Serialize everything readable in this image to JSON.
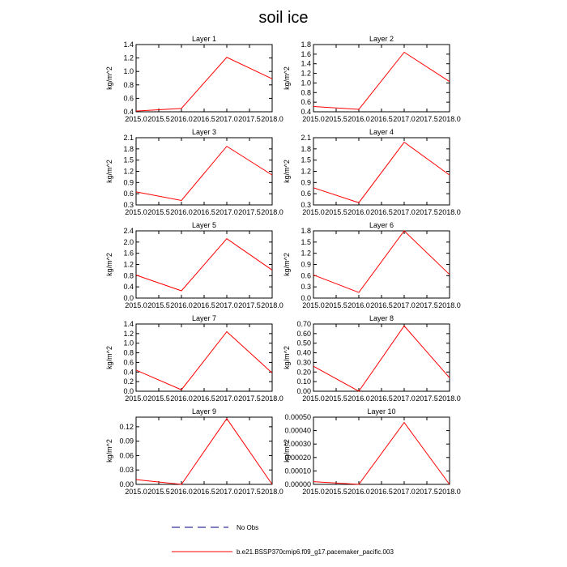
{
  "title": "soil ice",
  "colors": {
    "model_line": "#ff0000",
    "obs_line": "#000080"
  },
  "legend": {
    "obs_label": "No Obs",
    "model_label": "b.e21.BSSP370cmip6.f09_g17.pacemaker_pacific.003"
  },
  "chart_data": [
    {
      "type": "line",
      "title": "Layer 1",
      "ylabel": "kg/m^2",
      "x": [
        2015.0,
        2016.0,
        2017.0,
        2018.0
      ],
      "series": [
        {
          "values": [
            0.41,
            0.45,
            1.21,
            0.89
          ]
        }
      ],
      "xlim": [
        2015.0,
        2018.0
      ],
      "ylim": [
        0.4,
        1.4
      ],
      "xticks": [
        "2015.0",
        "2015.5",
        "2016.0",
        "2016.5",
        "2017.0",
        "2017.5",
        "2018.0"
      ],
      "yticks": [
        "0.4",
        "0.6",
        "0.8",
        "1.0",
        "1.2",
        "1.4"
      ]
    },
    {
      "type": "line",
      "title": "Layer 2",
      "ylabel": "kg/m^2",
      "x": [
        2015.0,
        2016.0,
        2017.0,
        2018.0
      ],
      "series": [
        {
          "values": [
            0.51,
            0.45,
            1.64,
            1.03
          ]
        }
      ],
      "xlim": [
        2015.0,
        2018.0
      ],
      "ylim": [
        0.4,
        1.8
      ],
      "xticks": [
        "2015.0",
        "2015.5",
        "2016.0",
        "2016.5",
        "2017.0",
        "2017.5",
        "2018.0"
      ],
      "yticks": [
        "0.4",
        "0.6",
        "0.8",
        "1.0",
        "1.2",
        "1.4",
        "1.6",
        "1.8"
      ]
    },
    {
      "type": "line",
      "title": "Layer 3",
      "ylabel": "kg/m^2",
      "x": [
        2015.0,
        2016.0,
        2017.0,
        2018.0
      ],
      "series": [
        {
          "values": [
            0.65,
            0.42,
            1.87,
            1.1
          ]
        }
      ],
      "xlim": [
        2015.0,
        2018.0
      ],
      "ylim": [
        0.3,
        2.1
      ],
      "xticks": [
        "2015.0",
        "2015.5",
        "2016.0",
        "2016.5",
        "2017.0",
        "2017.5",
        "2018.0"
      ],
      "yticks": [
        "0.3",
        "0.6",
        "0.9",
        "1.2",
        "1.5",
        "1.8",
        "2.1"
      ]
    },
    {
      "type": "line",
      "title": "Layer 4",
      "ylabel": "kg/m^2",
      "x": [
        2015.0,
        2016.0,
        2017.0,
        2018.0
      ],
      "series": [
        {
          "values": [
            0.76,
            0.36,
            1.98,
            1.1
          ]
        }
      ],
      "xlim": [
        2015.0,
        2018.0
      ],
      "ylim": [
        0.3,
        2.1
      ],
      "xticks": [
        "2015.0",
        "2015.5",
        "2016.0",
        "2016.5",
        "2017.0",
        "2017.5",
        "2018.0"
      ],
      "yticks": [
        "0.3",
        "0.6",
        "0.9",
        "1.2",
        "1.5",
        "1.8",
        "2.1"
      ]
    },
    {
      "type": "line",
      "title": "Layer 5",
      "ylabel": "kg/m^2",
      "x": [
        2015.0,
        2016.0,
        2017.0,
        2018.0
      ],
      "series": [
        {
          "values": [
            0.82,
            0.26,
            2.12,
            1.0
          ]
        }
      ],
      "xlim": [
        2015.0,
        2018.0
      ],
      "ylim": [
        0.0,
        2.4
      ],
      "xticks": [
        "2015.0",
        "2015.5",
        "2016.0",
        "2016.5",
        "2017.0",
        "2017.5",
        "2018.0"
      ],
      "yticks": [
        "0.0",
        "0.4",
        "0.8",
        "1.2",
        "1.6",
        "2.0",
        "2.4"
      ]
    },
    {
      "type": "line",
      "title": "Layer 6",
      "ylabel": "kg/m^2",
      "x": [
        2015.0,
        2016.0,
        2017.0,
        2018.0
      ],
      "series": [
        {
          "values": [
            0.62,
            0.15,
            1.8,
            0.63
          ]
        }
      ],
      "xlim": [
        2015.0,
        2018.0
      ],
      "ylim": [
        0.0,
        1.8
      ],
      "xticks": [
        "2015.0",
        "2015.5",
        "2016.0",
        "2016.5",
        "2017.0",
        "2017.5",
        "2018.0"
      ],
      "yticks": [
        "0.0",
        "0.3",
        "0.6",
        "0.9",
        "1.2",
        "1.5",
        "1.8"
      ]
    },
    {
      "type": "line",
      "title": "Layer 7",
      "ylabel": "kg/m^2",
      "x": [
        2015.0,
        2016.0,
        2017.0,
        2018.0
      ],
      "series": [
        {
          "values": [
            0.44,
            0.03,
            1.24,
            0.38
          ]
        }
      ],
      "xlim": [
        2015.0,
        2018.0
      ],
      "ylim": [
        0.0,
        1.4
      ],
      "xticks": [
        "2015.0",
        "2015.5",
        "2016.0",
        "2016.5",
        "2017.0",
        "2017.5",
        "2018.0"
      ],
      "yticks": [
        "0.0",
        "0.2",
        "0.4",
        "0.6",
        "0.8",
        "1.0",
        "1.2",
        "1.4"
      ]
    },
    {
      "type": "line",
      "title": "Layer 8",
      "ylabel": "kg/m^2",
      "x": [
        2015.0,
        2016.0,
        2017.0,
        2018.0
      ],
      "series": [
        {
          "values": [
            0.26,
            0.0,
            0.68,
            0.14
          ]
        }
      ],
      "xlim": [
        2015.0,
        2018.0
      ],
      "ylim": [
        0.0,
        0.7
      ],
      "xticks": [
        "2015.0",
        "2015.5",
        "2016.0",
        "2016.5",
        "2017.0",
        "2017.5",
        "2018.0"
      ],
      "yticks": [
        "0.00",
        "0.10",
        "0.20",
        "0.30",
        "0.40",
        "0.50",
        "0.60",
        "0.70"
      ]
    },
    {
      "type": "line",
      "title": "Layer 9",
      "ylabel": "kg/m^2",
      "x": [
        2015.0,
        2016.0,
        2017.0,
        2018.0
      ],
      "series": [
        {
          "values": [
            0.01,
            0.0,
            0.137,
            0.0
          ]
        }
      ],
      "xlim": [
        2015.0,
        2018.0
      ],
      "ylim": [
        0.0,
        0.14
      ],
      "xticks": [
        "2015.0",
        "2015.5",
        "2016.0",
        "2016.5",
        "2017.0",
        "2017.5",
        "2018.0"
      ],
      "yticks": [
        "0.00",
        "0.03",
        "0.06",
        "0.09",
        "0.12"
      ],
      "ytick_values": [
        0.0,
        0.03,
        0.06,
        0.09,
        0.12
      ]
    },
    {
      "type": "line",
      "title": "Layer 10",
      "ylabel": "kg/m^2",
      "x": [
        2015.0,
        2016.0,
        2017.0,
        2018.0
      ],
      "series": [
        {
          "values": [
            2e-05,
            0.0,
            0.00046,
            0.0
          ]
        }
      ],
      "xlim": [
        2015.0,
        2018.0
      ],
      "ylim": [
        0.0,
        0.0005
      ],
      "xticks": [
        "2015.0",
        "2015.5",
        "2016.0",
        "2016.5",
        "2017.0",
        "2017.5",
        "2018.0"
      ],
      "yticks": [
        "0.00000",
        "0.00010",
        "0.00020",
        "0.00030",
        "0.00040",
        "0.00050"
      ]
    }
  ]
}
